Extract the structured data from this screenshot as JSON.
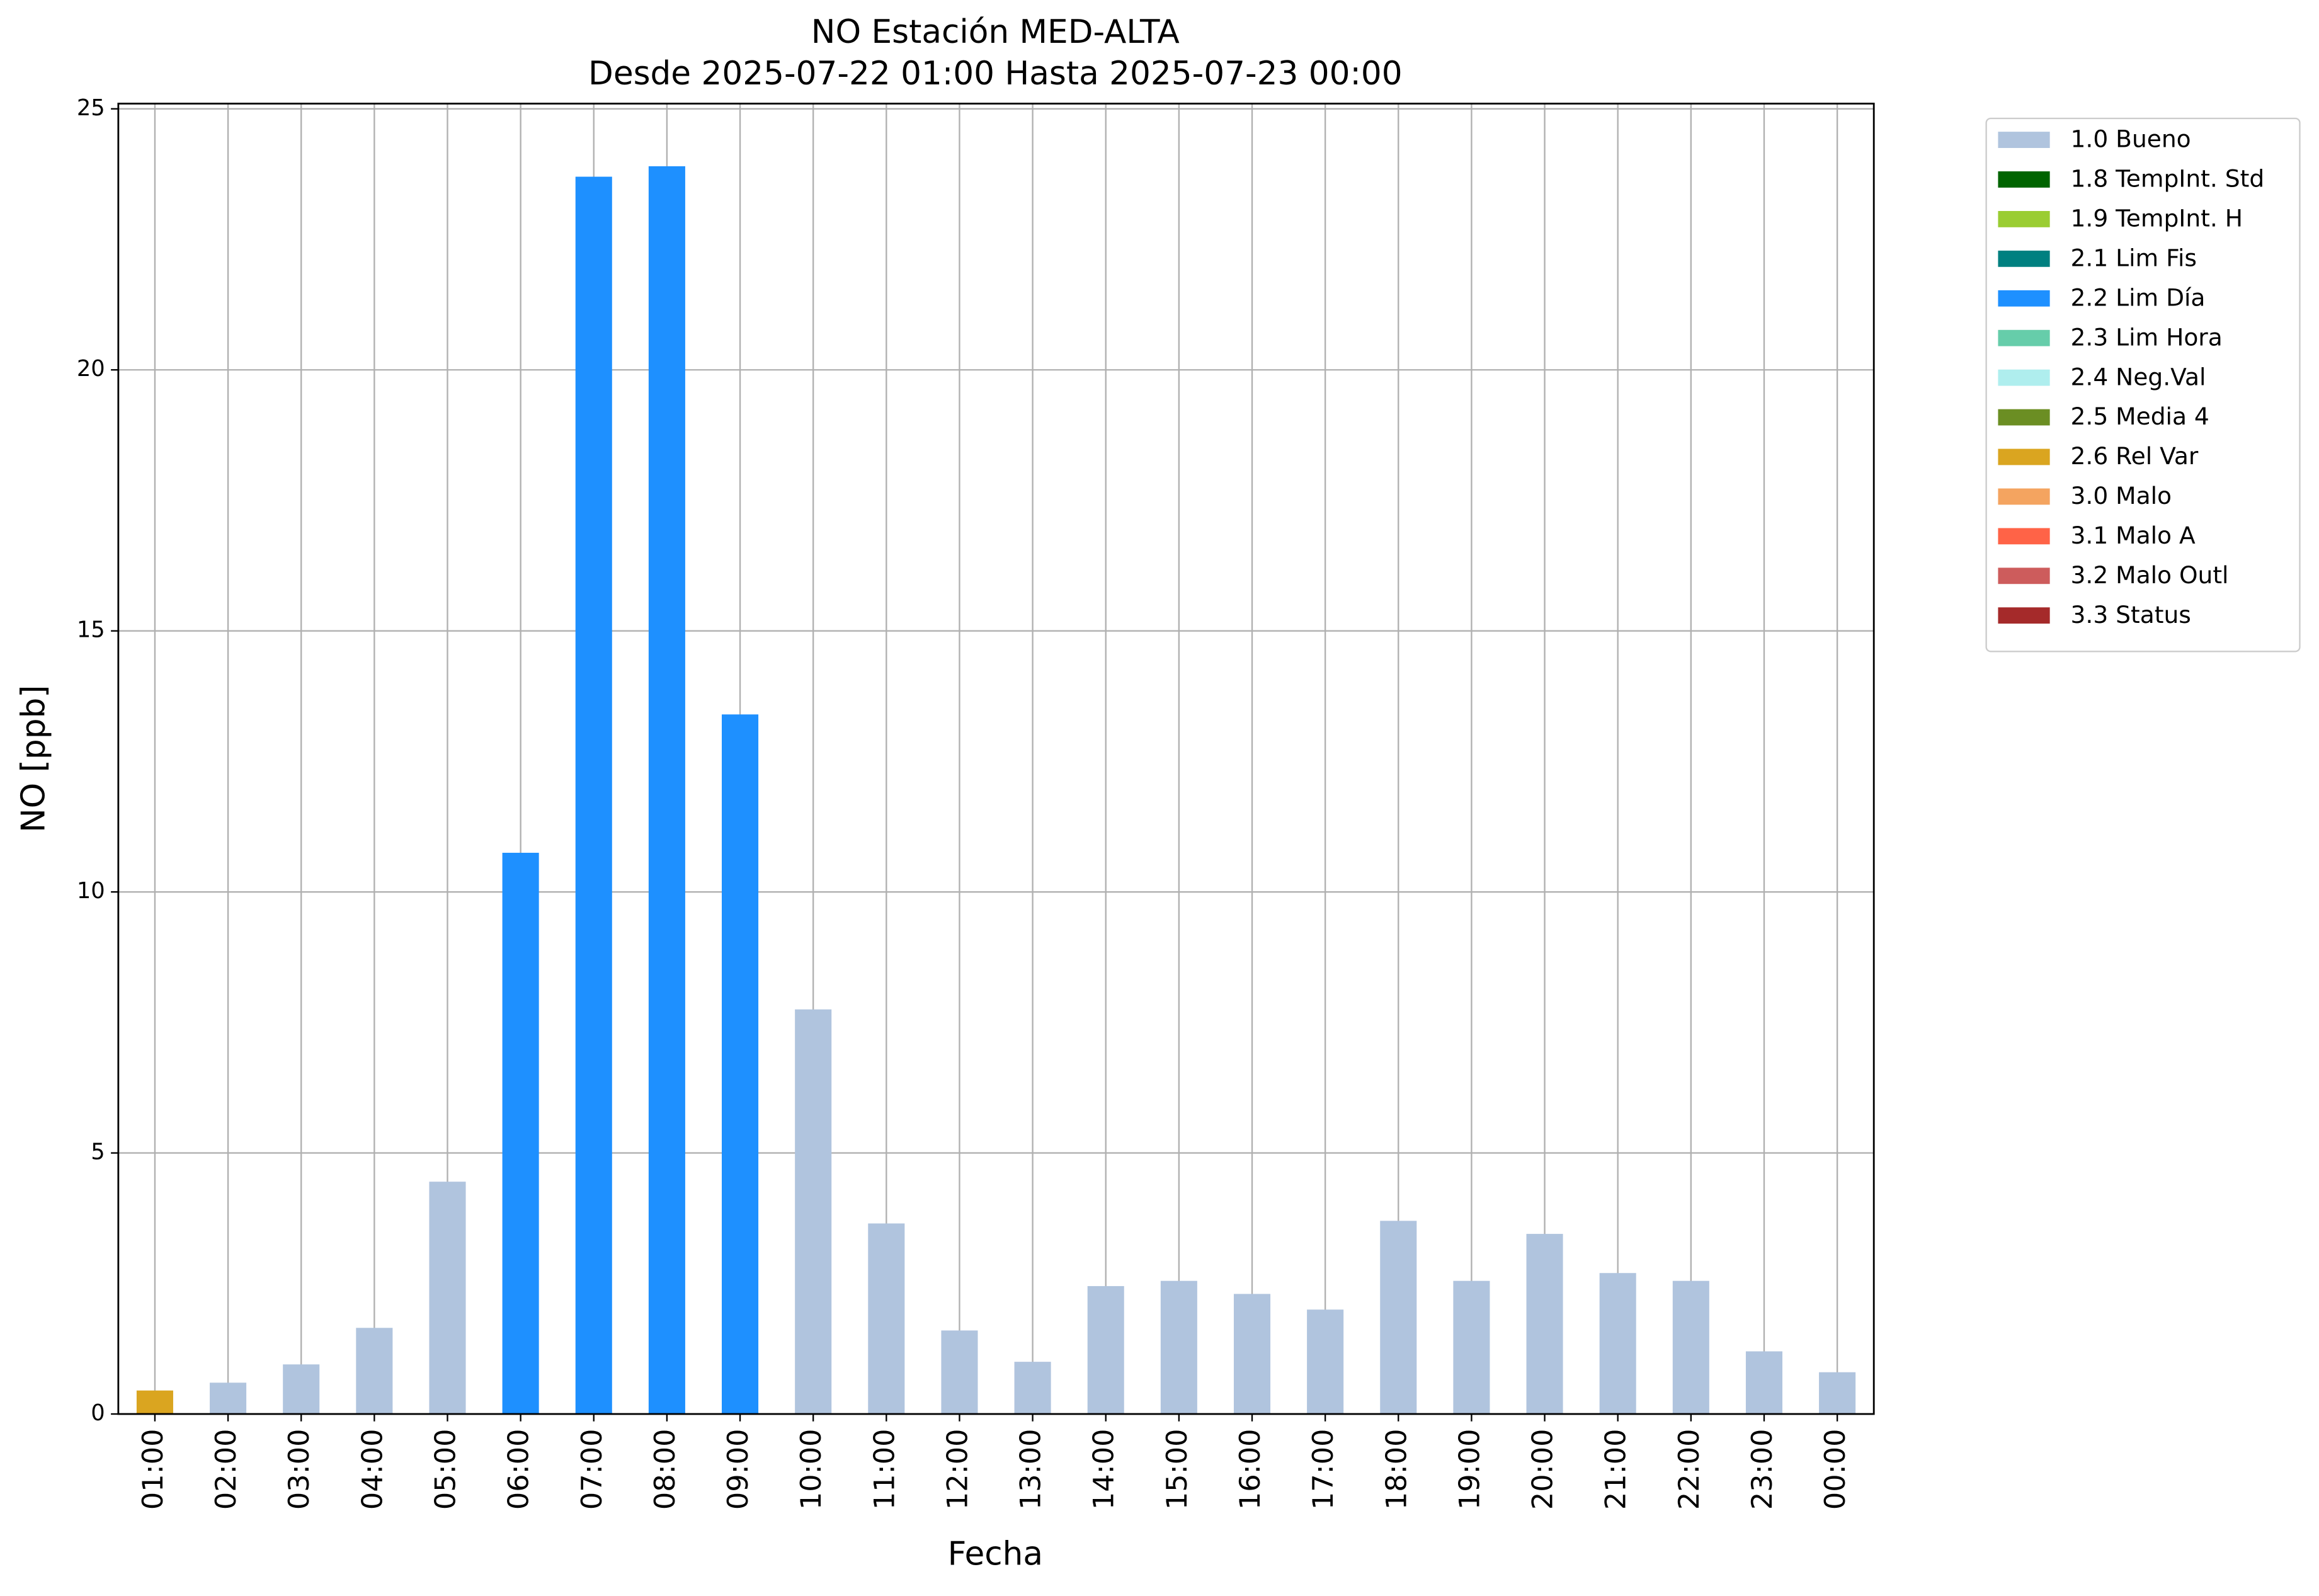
{
  "chart_data": {
    "type": "stacked_bar",
    "title": "NO Estación MED-ALTA",
    "subtitle": "Desde 2025-07-22 01:00 Hasta 2025-07-23 00:00",
    "x_label": "Fecha",
    "y_label": "NO [ppb]",
    "categories": [
      "01:00",
      "02:00",
      "03:00",
      "04:00",
      "05:00",
      "06:00",
      "07:00",
      "08:00",
      "09:00",
      "10:00",
      "11:00",
      "12:00",
      "13:00",
      "14:00",
      "15:00",
      "16:00",
      "17:00",
      "18:00",
      "19:00",
      "20:00",
      "21:00",
      "22:00",
      "23:00",
      "00:00"
    ],
    "series": [
      {
        "name": "1.0 Bueno",
        "color": "#b0c4de",
        "values": [
          null,
          0.6,
          0.95,
          1.65,
          4.45,
          null,
          null,
          null,
          null,
          7.75,
          3.65,
          1.6,
          1.0,
          2.45,
          2.55,
          2.3,
          2.0,
          3.7,
          2.55,
          3.45,
          2.7,
          2.55,
          1.2,
          0.8
        ]
      },
      {
        "name": "1.8 TempInt. Std",
        "color": "#006400",
        "values": [
          null,
          null,
          null,
          null,
          null,
          null,
          null,
          null,
          null,
          null,
          null,
          null,
          null,
          null,
          null,
          null,
          null,
          null,
          null,
          null,
          null,
          null,
          null,
          null
        ]
      },
      {
        "name": "1.9 TempInt. H",
        "color": "#9acd32",
        "values": [
          null,
          null,
          null,
          null,
          null,
          null,
          null,
          null,
          null,
          null,
          null,
          null,
          null,
          null,
          null,
          null,
          null,
          null,
          null,
          null,
          null,
          null,
          null,
          null
        ]
      },
      {
        "name": "2.1 Lim Fis",
        "color": "#008080",
        "values": [
          null,
          null,
          null,
          null,
          null,
          null,
          null,
          null,
          null,
          null,
          null,
          null,
          null,
          null,
          null,
          null,
          null,
          null,
          null,
          null,
          null,
          null,
          null,
          null
        ]
      },
      {
        "name": "2.2 Lim Día",
        "color": "#1e90ff",
        "values": [
          null,
          null,
          null,
          null,
          null,
          10.75,
          23.7,
          23.9,
          13.4,
          null,
          null,
          null,
          null,
          null,
          null,
          null,
          null,
          null,
          null,
          null,
          null,
          null,
          null,
          null
        ]
      },
      {
        "name": "2.3 Lim Hora",
        "color": "#66cdaa",
        "values": [
          null,
          null,
          null,
          null,
          null,
          null,
          null,
          null,
          null,
          null,
          null,
          null,
          null,
          null,
          null,
          null,
          null,
          null,
          null,
          null,
          null,
          null,
          null,
          null
        ]
      },
      {
        "name": "2.4 Neg.Val",
        "color": "#afeeee",
        "values": [
          null,
          null,
          null,
          null,
          null,
          null,
          null,
          null,
          null,
          null,
          null,
          null,
          null,
          null,
          null,
          null,
          null,
          null,
          null,
          null,
          null,
          null,
          null,
          null
        ]
      },
      {
        "name": "2.5 Media 4",
        "color": "#6b8e23",
        "values": [
          null,
          null,
          null,
          null,
          null,
          null,
          null,
          null,
          null,
          null,
          null,
          null,
          null,
          null,
          null,
          null,
          null,
          null,
          null,
          null,
          null,
          null,
          null,
          null
        ]
      },
      {
        "name": "2.6 Rel Var",
        "color": "#daa520",
        "values": [
          0.45,
          null,
          null,
          null,
          null,
          null,
          null,
          null,
          null,
          null,
          null,
          null,
          null,
          null,
          null,
          null,
          null,
          null,
          null,
          null,
          null,
          null,
          null,
          null
        ]
      },
      {
        "name": "3.0 Malo",
        "color": "#f4a460",
        "values": [
          null,
          null,
          null,
          null,
          null,
          null,
          null,
          null,
          null,
          null,
          null,
          null,
          null,
          null,
          null,
          null,
          null,
          null,
          null,
          null,
          null,
          null,
          null,
          null
        ]
      },
      {
        "name": "3.1 Malo A",
        "color": "#ff6347",
        "values": [
          null,
          null,
          null,
          null,
          null,
          null,
          null,
          null,
          null,
          null,
          null,
          null,
          null,
          null,
          null,
          null,
          null,
          null,
          null,
          null,
          null,
          null,
          null,
          null
        ]
      },
      {
        "name": "3.2 Malo Outl",
        "color": "#cd5c5c",
        "values": [
          null,
          null,
          null,
          null,
          null,
          null,
          null,
          null,
          null,
          null,
          null,
          null,
          null,
          null,
          null,
          null,
          null,
          null,
          null,
          null,
          null,
          null,
          null,
          null
        ]
      },
      {
        "name": "3.3 Status",
        "color": "#a52a2a",
        "values": [
          null,
          null,
          null,
          null,
          null,
          null,
          null,
          null,
          null,
          null,
          null,
          null,
          null,
          null,
          null,
          null,
          null,
          null,
          null,
          null,
          null,
          null,
          null,
          null
        ]
      }
    ],
    "ylim": [
      0,
      25.1
    ],
    "yticks": [
      0,
      5,
      10,
      15,
      20,
      25
    ],
    "grid": true,
    "legend": "outside-right"
  }
}
